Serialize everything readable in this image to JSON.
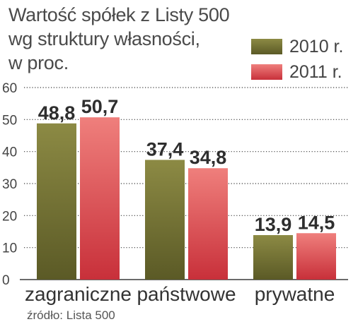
{
  "title": "Wartość spółek z Listy 500\nwg struktury własności,\nw proc.",
  "source": "źródło: Lista 500",
  "colors": {
    "series_2010_top": "#8c8a44",
    "series_2010_bottom": "#5b5a26",
    "series_2011_top": "#ef7f7c",
    "series_2011_bottom": "#c8303a",
    "grid": "#3a3a3a",
    "value_label": "#2e2e2e"
  },
  "chart_data": {
    "type": "bar",
    "title": "Wartość spółek z Listy 500 wg struktury własności, w proc.",
    "categories": [
      "zagraniczne",
      "państwowe",
      "prywatne"
    ],
    "series": [
      {
        "name": "2010 r.",
        "values": [
          48.8,
          37.4,
          13.9
        ],
        "labels": [
          "48,8",
          "37,4",
          "13,9"
        ]
      },
      {
        "name": "2011 r.",
        "values": [
          50.7,
          34.8,
          14.5
        ],
        "labels": [
          "50,7",
          "34,8",
          "14,5"
        ]
      }
    ],
    "yticks": [
      "0",
      "10",
      "20",
      "30",
      "40",
      "50",
      "60"
    ],
    "ylim": [
      0,
      60
    ],
    "grid": "dotted horizontal",
    "legend": "top-right",
    "xlabel": "",
    "ylabel": ""
  }
}
